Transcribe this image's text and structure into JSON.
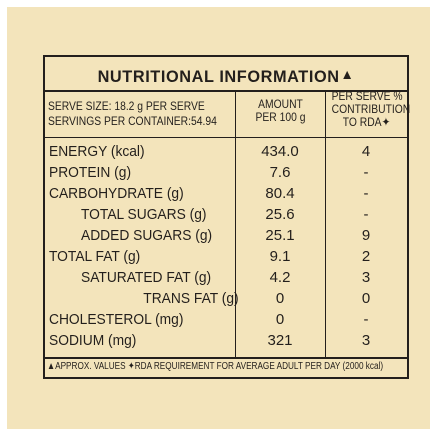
{
  "title": "NUTRITIONAL INFORMATION",
  "title_mark": "▲",
  "serve": {
    "serve_size": "SERVE SIZE: 18.2 g PER SERVE",
    "servings": "SERVINGS PER CONTAINER:54.94"
  },
  "columns": {
    "amount_line1": "AMOUNT",
    "amount_line2": "PER 100 g",
    "rda_line1": "PER SERVE %",
    "rda_line2": "CONTRIBUTION",
    "rda_line3": "TO RDA✦"
  },
  "rows": [
    {
      "name": "ENERGY (kcal)",
      "amount": "434.0",
      "rda": "4"
    },
    {
      "name": "PROTEIN (g)",
      "amount": "7.6",
      "rda": "-"
    },
    {
      "name": "CARBOHYDRATE (g)",
      "amount": "80.4",
      "rda": "-"
    },
    {
      "name": "TOTAL SUGARS (g)",
      "amount": "25.6",
      "rda": "-"
    },
    {
      "name": "ADDED SUGARS (g)",
      "amount": "25.1",
      "rda": "9"
    },
    {
      "name": "TOTAL FAT (g)",
      "amount": "9.1",
      "rda": "2"
    },
    {
      "name": "SATURATED FAT (g)",
      "amount": "4.2",
      "rda": "3"
    },
    {
      "name": "TRANS FAT (g)",
      "amount": "0",
      "rda": "0"
    },
    {
      "name": "CHOLESTEROL (mg)",
      "amount": "0",
      "rda": "-"
    },
    {
      "name": "SODIUM (mg)",
      "amount": "321",
      "rda": "3"
    }
  ],
  "footnote": "▲APPROX. VALUES ✦RDA REQUIREMENT FOR AVERAGE ADULT PER DAY (2000 kcal)"
}
